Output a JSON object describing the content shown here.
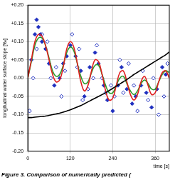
{
  "chart_data": {
    "type": "line",
    "subtitle": "Figure 3. Comparison of numerically predicted (",
    "x_label": "time [s]",
    "y_label": "longitudinal water surface slope [‰]",
    "xlim": [
      0,
      400
    ],
    "xticks": [
      0,
      120,
      240,
      360
    ],
    "ylim": [
      -0.2,
      0.2
    ],
    "yticks": [
      {
        "value": -0.2,
        "label": "-0.20"
      },
      {
        "value": -0.15,
        "label": "-0.15"
      },
      {
        "value": -0.1,
        "label": "-0.10"
      },
      {
        "value": -0.05,
        "label": "-0.05"
      },
      {
        "value": 0,
        "label": "0.00"
      },
      {
        "value": 0.05,
        "label": "+0.05"
      },
      {
        "value": 0.1,
        "label": "+0.10"
      },
      {
        "value": 0.15,
        "label": "+0.15"
      },
      {
        "value": 0.2,
        "label": "+0.20"
      }
    ],
    "grid": true,
    "series": [
      {
        "type": "line",
        "color": "#000000",
        "line_style": "solid",
        "x": [
          0,
          10,
          20,
          30,
          40,
          50,
          60,
          70,
          80,
          90,
          100,
          110,
          120,
          130,
          140,
          150,
          160,
          170,
          180,
          190,
          200,
          210,
          220,
          230,
          240,
          250,
          260,
          270,
          280,
          290,
          300,
          310,
          320,
          330,
          340,
          350,
          360,
          370,
          380,
          390,
          400
        ],
        "values": [
          -0.108,
          -0.108,
          -0.107,
          -0.106,
          -0.105,
          -0.104,
          -0.102,
          -0.1,
          -0.098,
          -0.096,
          -0.093,
          -0.09,
          -0.087,
          -0.083,
          -0.079,
          -0.075,
          -0.07,
          -0.065,
          -0.06,
          -0.055,
          -0.05,
          -0.045,
          -0.04,
          -0.034,
          -0.028,
          -0.022,
          -0.016,
          -0.01,
          -0.004,
          0.003,
          0.01,
          0.016,
          0.022,
          0.028,
          0.034,
          0.04,
          0.046,
          0.052,
          0.058,
          0.064,
          0.072
        ]
      },
      {
        "type": "line",
        "color": "#e02020",
        "line_style": "solid",
        "x": [
          0,
          10,
          20,
          30,
          40,
          50,
          60,
          70,
          80,
          90,
          100,
          110,
          120,
          130,
          140,
          150,
          160,
          170,
          180,
          190,
          200,
          210,
          220,
          230,
          240,
          250,
          260,
          270,
          280,
          290,
          300,
          310,
          320,
          330,
          340,
          350,
          360,
          370,
          380,
          390,
          400
        ],
        "values": [
          0,
          0.05,
          0.1,
          0.12,
          0.115,
          0.09,
          0.05,
          0.01,
          -0.01,
          -0.005,
          0.03,
          0.08,
          0.1,
          0.085,
          0.04,
          -0.01,
          -0.035,
          -0.02,
          0.02,
          0.05,
          0.045,
          0.01,
          -0.035,
          -0.06,
          -0.055,
          -0.02,
          0.015,
          0.02,
          -0.01,
          -0.045,
          -0.06,
          -0.045,
          -0.01,
          0.005,
          -0.02,
          -0.045,
          -0.04,
          -0.01,
          0.015,
          0.02,
          0
        ]
      },
      {
        "type": "line",
        "color": "#2a9a2a",
        "line_style": "solid",
        "x": [
          0,
          10,
          20,
          30,
          40,
          50,
          60,
          70,
          80,
          90,
          100,
          110,
          120,
          130,
          140,
          150,
          160,
          170,
          180,
          190,
          200,
          210,
          220,
          230,
          240,
          250,
          260,
          270,
          280,
          290,
          300,
          310,
          320,
          330,
          340,
          350,
          360,
          370,
          380,
          390,
          400
        ],
        "values": [
          0,
          0.045,
          0.09,
          0.11,
          0.11,
          0.09,
          0.055,
          0.02,
          0.005,
          0.01,
          0.035,
          0.07,
          0.085,
          0.075,
          0.04,
          0.005,
          -0.015,
          -0.01,
          0.015,
          0.035,
          0.035,
          0.01,
          -0.02,
          -0.04,
          -0.04,
          -0.02,
          0,
          0.005,
          -0.015,
          -0.035,
          -0.045,
          -0.035,
          -0.015,
          -0.005,
          -0.015,
          -0.03,
          -0.03,
          -0.01,
          0.01,
          0.02,
          0.015
        ]
      },
      {
        "type": "scatter",
        "color": "#1f2fbf",
        "marker": "diamond",
        "x": [
          10,
          20,
          25,
          30,
          35,
          40,
          50,
          60,
          75,
          90,
          100,
          110,
          120,
          135,
          150,
          160,
          175,
          190,
          200,
          215,
          225,
          240,
          255,
          265,
          280,
          295,
          305,
          320,
          335,
          350,
          365,
          380,
          390
        ],
        "values": [
          0.05,
          0.12,
          0.16,
          0.14,
          0.12,
          0.1,
          0.08,
          0.04,
          -0.02,
          0,
          0.04,
          0.06,
          0.09,
          0.06,
          0.02,
          -0.05,
          0.03,
          0.07,
          0.04,
          -0.02,
          -0.06,
          -0.09,
          -0.02,
          0.03,
          -0.03,
          -0.07,
          -0.05,
          -0.02,
          -0.04,
          -0.08,
          -0.03,
          0.03,
          0.01
        ]
      },
      {
        "type": "scatter",
        "color": "#1f2fbf",
        "marker": "open-diamond",
        "x": [
          5,
          15,
          25,
          40,
          55,
          65,
          80,
          95,
          105,
          125,
          140,
          145,
          155,
          170,
          185,
          195,
          210,
          220,
          235,
          245,
          260,
          270,
          285,
          300,
          310,
          325,
          340,
          355,
          370,
          385,
          395
        ],
        "values": [
          -0.09,
          0,
          0.08,
          0.12,
          0.1,
          0,
          0.03,
          -0.05,
          0.02,
          0.12,
          0.03,
          0.08,
          -0.06,
          -0.03,
          0,
          0.09,
          0,
          -0.04,
          -0.02,
          -0.05,
          0.05,
          -0.04,
          0.04,
          -0.02,
          -0.09,
          0.02,
          -0.06,
          0,
          -0.1,
          -0.05,
          0.04
        ]
      }
    ]
  }
}
